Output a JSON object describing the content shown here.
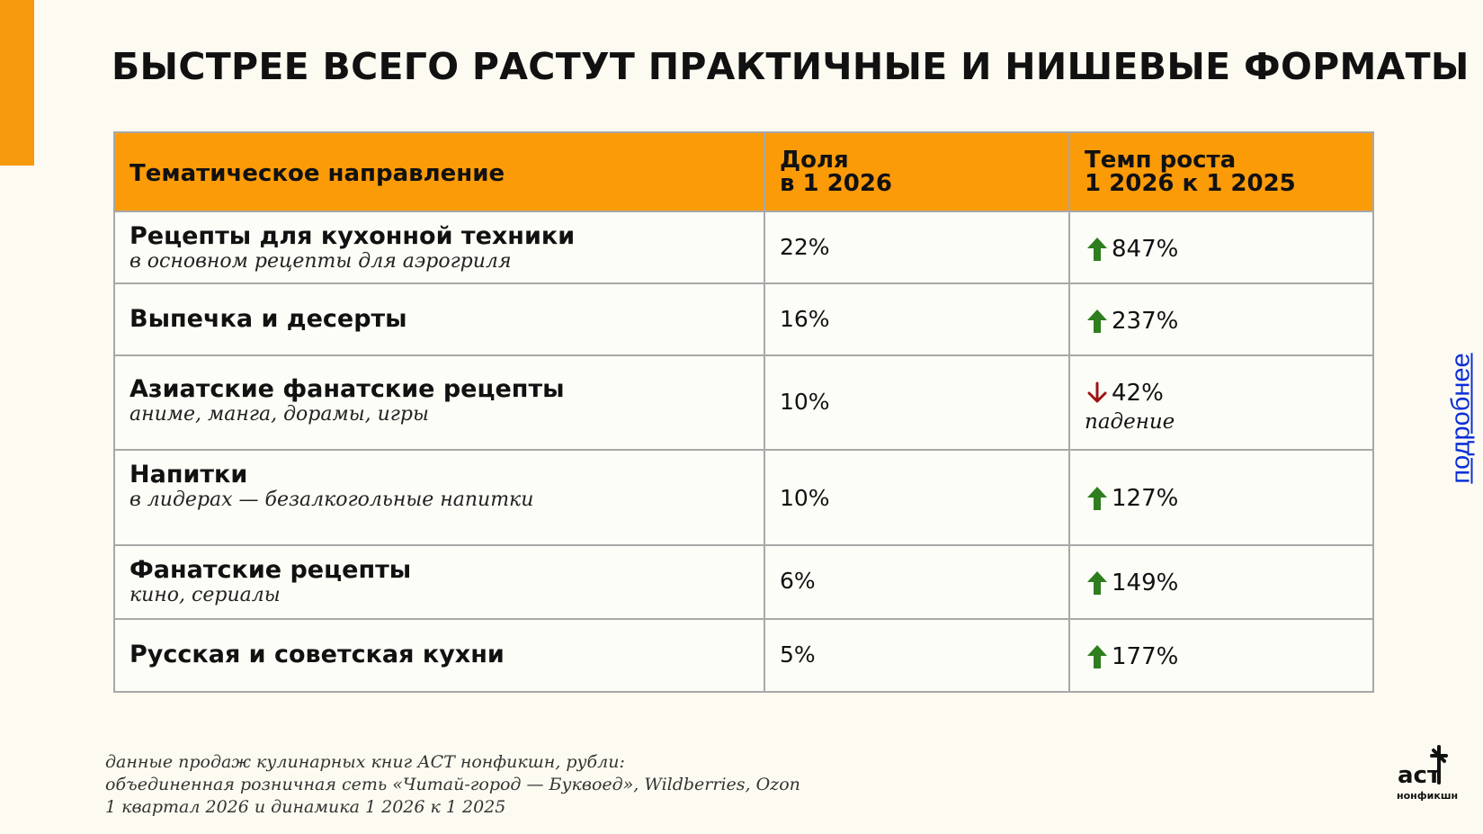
{
  "title": "БЫСТРЕЕ ВСЕГО РАСТУТ ПРАКТИЧНЫЕ И НИШЕВЫЕ ФОРМАТЫ",
  "table": {
    "headers": {
      "category": "Тематическое направление",
      "share_line1": "Доля",
      "share_line2": "в 1 2026",
      "growth_line1": "Темп роста",
      "growth_line2": "1 2026 к 1 2025"
    },
    "rows": [
      {
        "name": "Рецепты для кухонной техники",
        "sub": "в основном рецепты для аэрогриля",
        "share": "22%",
        "growth": "847%",
        "direction": "up",
        "note": ""
      },
      {
        "name": "Выпечка и десерты",
        "sub": "",
        "share": "16%",
        "growth": "237%",
        "direction": "up",
        "note": ""
      },
      {
        "name": "Азиатские фанатские рецепты",
        "sub": "аниме, манга, дорамы, игры",
        "share": "10%",
        "growth": "42%",
        "direction": "down",
        "note": "падение"
      },
      {
        "name": "Напитки",
        "sub": "в лидерах — безалкогольные напитки",
        "share": "10%",
        "growth": "127%",
        "direction": "up",
        "note": ""
      },
      {
        "name": "Фанатские рецепты",
        "sub": "кино, сериалы",
        "share": "6%",
        "growth": "149%",
        "direction": "up",
        "note": ""
      },
      {
        "name": "Русская и советская кухни",
        "sub": "",
        "share": "5%",
        "growth": "177%",
        "direction": "up",
        "note": ""
      }
    ]
  },
  "more_link": "подробнее",
  "footnote": {
    "line1": "данные продаж кулинарных книг АСТ нонфикшн, рубли:",
    "line2": "объединенная розничная сеть «Читай-город — Буквоед», Wildberries, Ozon",
    "line3": "1 квартал 2026 и динамика 1 2026 к 1 2025"
  },
  "logo": {
    "text_top": "аст",
    "text_bottom": "нонфикшн"
  },
  "colors": {
    "accent": "#f7990c",
    "header_bg": "#fc9b08",
    "up": "#2e7d1e",
    "down": "#a01212",
    "link": "#0b2fd9"
  }
}
